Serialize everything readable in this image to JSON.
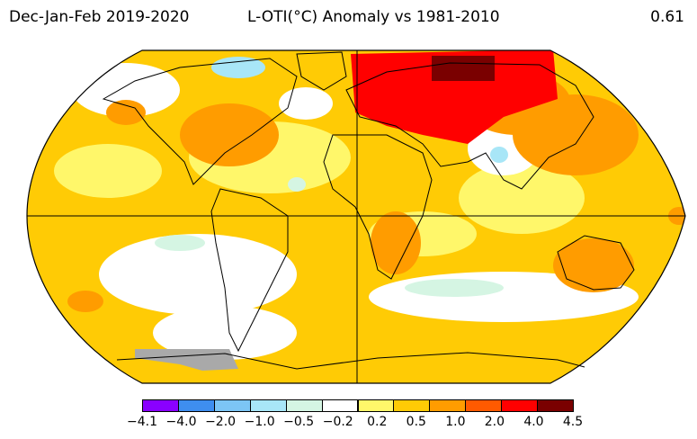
{
  "header": {
    "period": "Dec-Jan-Feb 2019-2020",
    "title": "L-OTI(°C) Anomaly vs 1981-2010",
    "global_mean": "0.61"
  },
  "legend": {
    "colors": [
      "#8a00ff",
      "#3e8eef",
      "#7cc5f5",
      "#a8e6f7",
      "#d5f5e3",
      "#ffffff",
      "#fff76a",
      "#ffcb05",
      "#ff9c00",
      "#ff5a00",
      "#ff0000",
      "#7a0000"
    ],
    "labels": [
      "−4.1",
      "−4.0",
      "−2.0",
      "−1.0",
      "−0.5",
      "−0.2",
      "0.2",
      "0.5",
      "1.0",
      "2.0",
      "4.0",
      "4.5"
    ]
  },
  "map": {
    "projection": "Robinson",
    "missing_color": "#a9a9a9"
  }
}
